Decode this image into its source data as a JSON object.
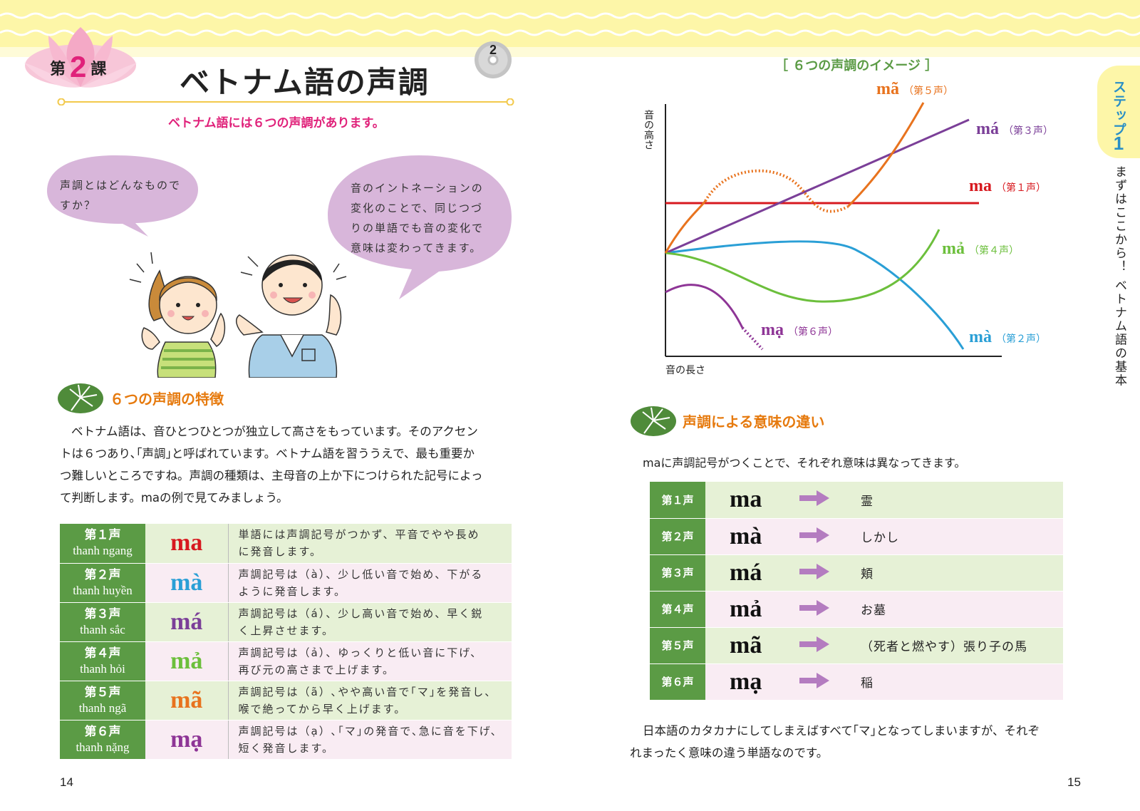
{
  "colors": {
    "accent_pink": "#e0217a",
    "heading_orange": "#e67a0e",
    "table_green": "#5b9b45",
    "row_green": "#e6f1d6",
    "row_pink": "#f9ecf3",
    "band_yellow": "#fdf6a8",
    "step_blue": "#2a8fc6"
  },
  "left_page": {
    "lesson": {
      "prefix": "第",
      "number": "2",
      "suffix": "課"
    },
    "title": "ベトナム語の声調",
    "audio_track": "2",
    "subtitle": "ベトナム語には６つの声調があります。",
    "bubble_girl": [
      "声調とはどんなもので",
      "すか？"
    ],
    "bubble_boy": [
      "音のイントネーションの",
      "変化のことで、同じつづ",
      "りの単語でも音の変化で",
      "意味は変わってきます。"
    ],
    "section_title": "６つの声調の特徴",
    "intro_lines": [
      "ベトナム語は、音ひとつひとつが独立して高さをもっています。そのアクセン",
      "トは６つあり､｢声調｣と呼ばれています。ベトナム語を習ううえで、最も重要か",
      "つ難しいところですね。声調の種類は、主母音の上か下につけられた記号によっ",
      "て判断します。maの例で見てみましょう。"
    ],
    "tones": [
      {
        "name": "第１声",
        "vn": "thanh ngang",
        "word": "ma",
        "color": "#d7191f",
        "desc": [
          "単語には声調記号がつかず、平音でやや長め",
          "に発音します。"
        ]
      },
      {
        "name": "第２声",
        "vn": "thanh huyền",
        "word": "mà",
        "color": "#2a9fd6",
        "desc": [
          "声調記号は（à）、少し低い音で始め、下がる",
          "ように発音します。"
        ]
      },
      {
        "name": "第３声",
        "vn": "thanh sắc",
        "word": "má",
        "color": "#7b3f98",
        "desc": [
          "声調記号は（á）、少し高い音で始め、早く鋭",
          "く上昇させます。"
        ]
      },
      {
        "name": "第４声",
        "vn": "thanh hỏi",
        "word": "mả",
        "color": "#6cbf3c",
        "desc": [
          "声調記号は（ả）、ゆっくりと低い音に下げ、",
          "再び元の高さまで上げます。"
        ]
      },
      {
        "name": "第５声",
        "vn": "thanh ngã",
        "word": "mã",
        "color": "#e8731e",
        "desc": [
          "声調記号は（ã）､やや高い音で｢マ｣を発音し、",
          "喉で絶ってから早く上げます。"
        ]
      },
      {
        "name": "第６声",
        "vn": "thanh nặng",
        "word": "mạ",
        "color": "#8e3596",
        "desc": [
          "声調記号は（ạ）､｢マ｣の発音で､急に音を下げ、",
          "短く発音します。"
        ]
      }
    ],
    "page_number": "14"
  },
  "right_page": {
    "chart_title": "［ ６つの声調のイメージ ］",
    "side_tab": {
      "label": "ステップ",
      "number": "1"
    },
    "side_caption": "まずはここから！ ベトナム語の基本",
    "section_title": "声調による意味の違い",
    "intro": "maに声調記号がつくことで、それぞれ意味は異なってきます。",
    "meanings": [
      {
        "tone": "第１声",
        "word": "ma",
        "meaning": "霊"
      },
      {
        "tone": "第２声",
        "word": "mà",
        "meaning": "しかし"
      },
      {
        "tone": "第３声",
        "word": "má",
        "meaning": "頬"
      },
      {
        "tone": "第４声",
        "word": "mả",
        "meaning": "お墓"
      },
      {
        "tone": "第５声",
        "word": "mã",
        "meaning": "（死者と燃やす）張り子の馬"
      },
      {
        "tone": "第６声",
        "word": "mạ",
        "meaning": "稲"
      }
    ],
    "closing_lines": [
      "日本語のカタカナにしてしまえばすべて｢マ｣となってしまいますが、それぞ",
      "れまったく意味の違う単語なのです。"
    ],
    "page_number": "15"
  },
  "chart_data": {
    "type": "line",
    "title": "６つの声調のイメージ",
    "xlabel": "音の長さ",
    "ylabel": "音の高さ",
    "grid": false,
    "series": [
      {
        "name": "ma（第１声）",
        "word": "ma",
        "tone": "（第１声）",
        "color": "#d7191f",
        "shape": "level"
      },
      {
        "name": "mà（第２声）",
        "word": "mà",
        "tone": "（第２声）",
        "color": "#2a9fd6",
        "shape": "fall"
      },
      {
        "name": "má（第３声）",
        "word": "má",
        "tone": "（第３声）",
        "color": "#7b3f98",
        "shape": "rise"
      },
      {
        "name": "mả（第４声）",
        "word": "mả",
        "tone": "（第４声）",
        "color": "#6cbf3c",
        "shape": "dip-rise"
      },
      {
        "name": "mã（第５声）",
        "word": "mã",
        "tone": "（第５声）",
        "color": "#e8731e",
        "shape": "rise-break-rise"
      },
      {
        "name": "mạ（第６声）",
        "word": "mạ",
        "tone": "（第６声）",
        "color": "#8e3596",
        "shape": "drop"
      }
    ]
  }
}
